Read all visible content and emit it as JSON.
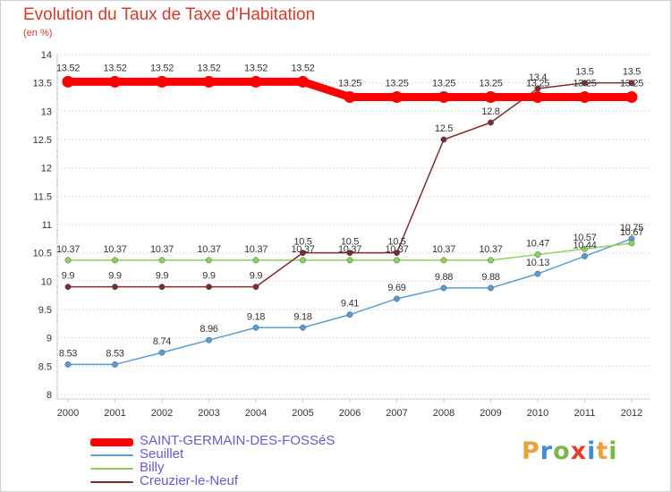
{
  "title": "Evolution du Taux de Taxe d'Habitation",
  "unit": "(en %)",
  "logo": {
    "text": "Proxiti",
    "colors": [
      "#e8a33b",
      "#3d8fd4",
      "#7ab648",
      "#e2402f",
      "#3d8fd4",
      "#e8a33b",
      "#7ab648"
    ]
  },
  "chart_data": {
    "type": "line",
    "title": "Evolution du Taux de Taxe d'Habitation",
    "ylabel": "(en %)",
    "xlabel": "",
    "x": [
      "2000",
      "2001",
      "2002",
      "2003",
      "2004",
      "2005",
      "2006",
      "2007",
      "2008",
      "2009",
      "2010",
      "2011",
      "2012"
    ],
    "ylim": [
      8,
      14
    ],
    "yticks": [
      "8",
      "8.5",
      "9",
      "9.5",
      "10",
      "10.5",
      "11",
      "11.5",
      "12",
      "12.5",
      "13",
      "13.5",
      "14"
    ],
    "grid": "horizontal-dotted",
    "legend_position": "bottom-left",
    "series": [
      {
        "name": "SAINT-GERMAIN-DES-FOSSéS",
        "color": "#ff0000",
        "emphasis": "thick",
        "values": [
          13.52,
          13.52,
          13.52,
          13.52,
          13.52,
          13.52,
          13.25,
          13.25,
          13.25,
          13.25,
          13.25,
          13.25,
          13.25
        ],
        "labels": [
          "13.52",
          "13.52",
          "13.52",
          "13.52",
          "13.52",
          "13.52",
          "13.25",
          "13.25",
          "13.25",
          "13.25",
          "13.25",
          "13.25",
          "13.25"
        ]
      },
      {
        "name": "Seuillet",
        "color": "#5b9bd5",
        "emphasis": "thin",
        "values": [
          8.53,
          8.53,
          8.74,
          8.96,
          9.18,
          9.18,
          9.41,
          9.69,
          9.88,
          9.88,
          10.13,
          10.44,
          10.75
        ],
        "labels": [
          "8.53",
          "8.53",
          "8.74",
          "8.96",
          "9.18",
          "9.18",
          "9.41",
          "9.69",
          "9.88",
          "9.88",
          "10.13",
          "10.44",
          "10.75"
        ]
      },
      {
        "name": "Billy",
        "color": "#8ed15a",
        "emphasis": "thin",
        "values": [
          10.37,
          10.37,
          10.37,
          10.37,
          10.37,
          10.37,
          10.37,
          10.37,
          10.37,
          10.37,
          10.47,
          10.57,
          10.67
        ],
        "labels": [
          "10.37",
          "10.37",
          "10.37",
          "10.37",
          "10.37",
          "10.37",
          "10.37",
          "10.37",
          "10.37",
          "10.37",
          "10.47",
          "10.57",
          "10.67"
        ]
      },
      {
        "name": "Creuzier-le-Neuf",
        "color": "#7b2d2d",
        "emphasis": "thin",
        "values": [
          9.9,
          9.9,
          9.9,
          9.9,
          9.9,
          10.5,
          10.5,
          10.5,
          12.5,
          12.8,
          13.4,
          13.5,
          13.5
        ],
        "labels": [
          "9.9",
          "9.9",
          "9.9",
          "9.9",
          "9.9",
          "10.5",
          "10.5",
          "10.5",
          "12.5",
          "12.8",
          "13.4",
          "13.5",
          "13.5"
        ]
      }
    ]
  }
}
